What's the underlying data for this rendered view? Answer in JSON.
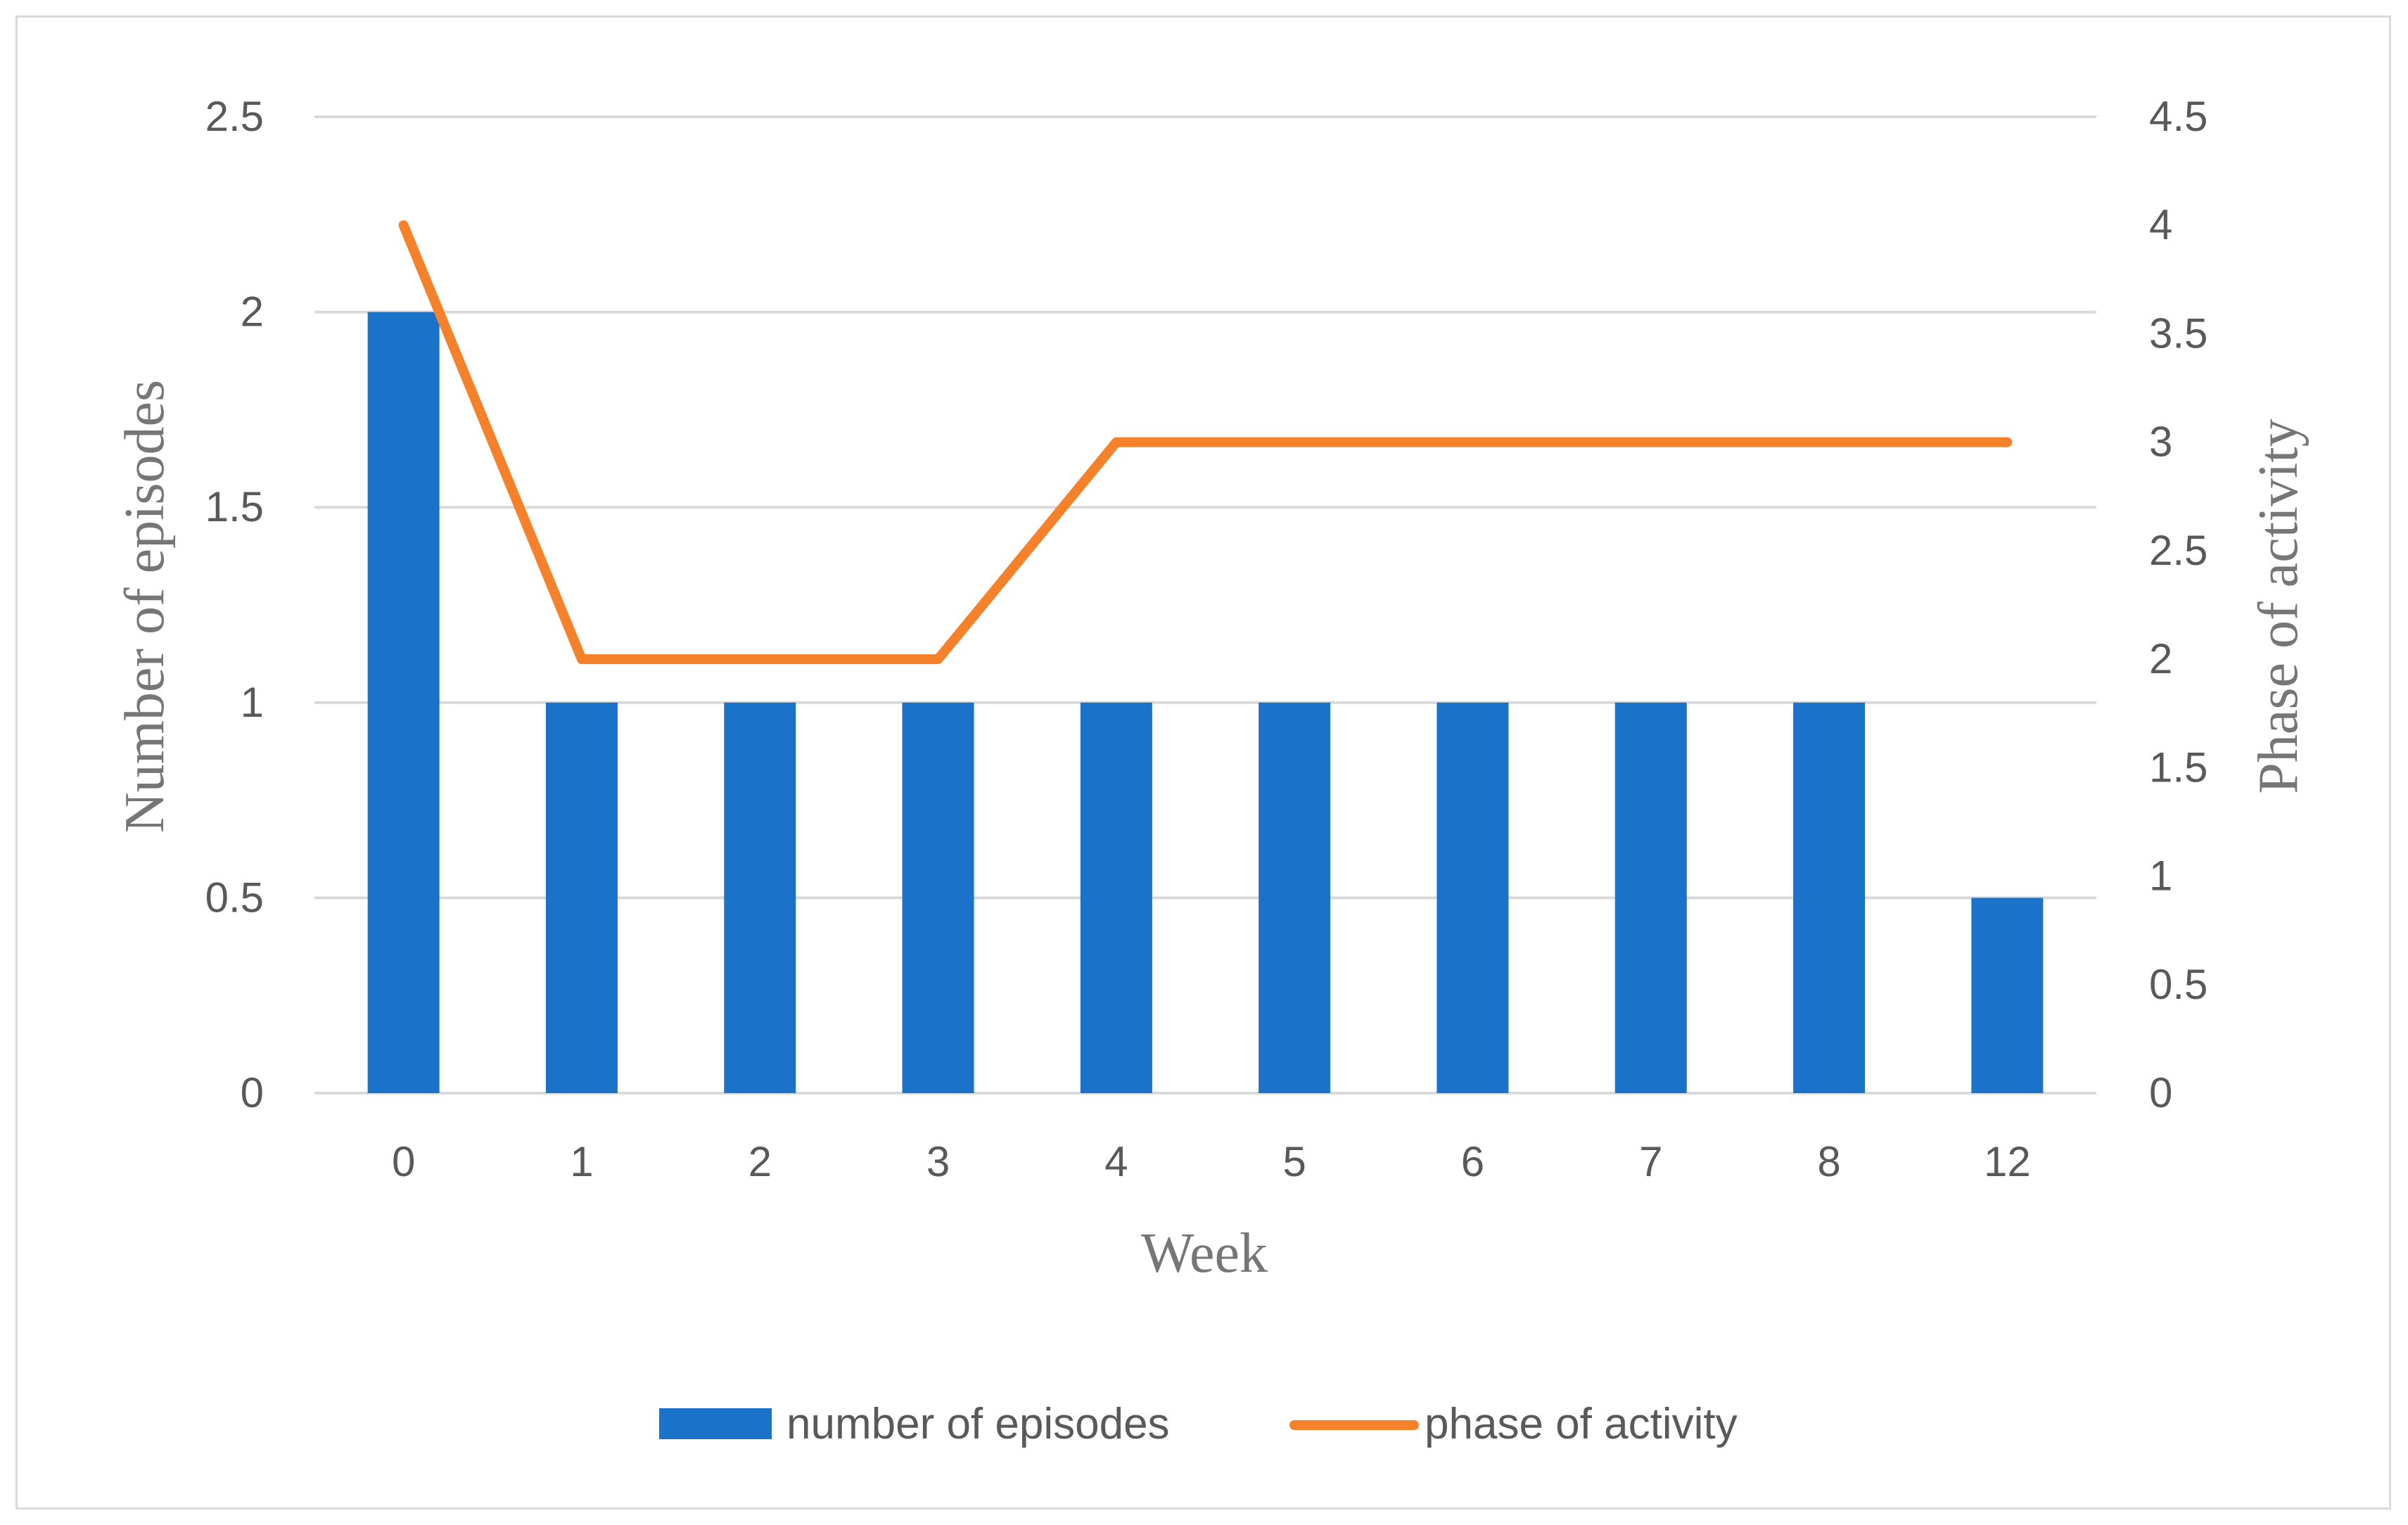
{
  "chart_data": {
    "type": "bar",
    "categories": [
      "0",
      "1",
      "2",
      "3",
      "4",
      "5",
      "6",
      "7",
      "8",
      "12"
    ],
    "xlabel": "Week",
    "ylabel": "Number of episodes",
    "y2label": "Phase of activity",
    "ylim": [
      0,
      2.5
    ],
    "y2lim": [
      0,
      4.5
    ],
    "yticks": [
      "0",
      "0.5",
      "1",
      "1.5",
      "2",
      "2.5"
    ],
    "y2ticks": [
      "0",
      "0.5",
      "1",
      "1.5",
      "2",
      "2.5",
      "3",
      "3.5",
      "4",
      "4.5"
    ],
    "grid": true,
    "legend_position": "bottom",
    "series": [
      {
        "name": "number of episodes",
        "type": "bar",
        "axis": "left",
        "color": "#1a73c8",
        "values": [
          2,
          1,
          1,
          1,
          1,
          1,
          1,
          1,
          1,
          0.5
        ]
      },
      {
        "name": "phase of activity",
        "type": "line",
        "axis": "right",
        "color": "#f5822a",
        "values": [
          4,
          2,
          2,
          2,
          3,
          3,
          3,
          3,
          3,
          3
        ]
      }
    ]
  }
}
